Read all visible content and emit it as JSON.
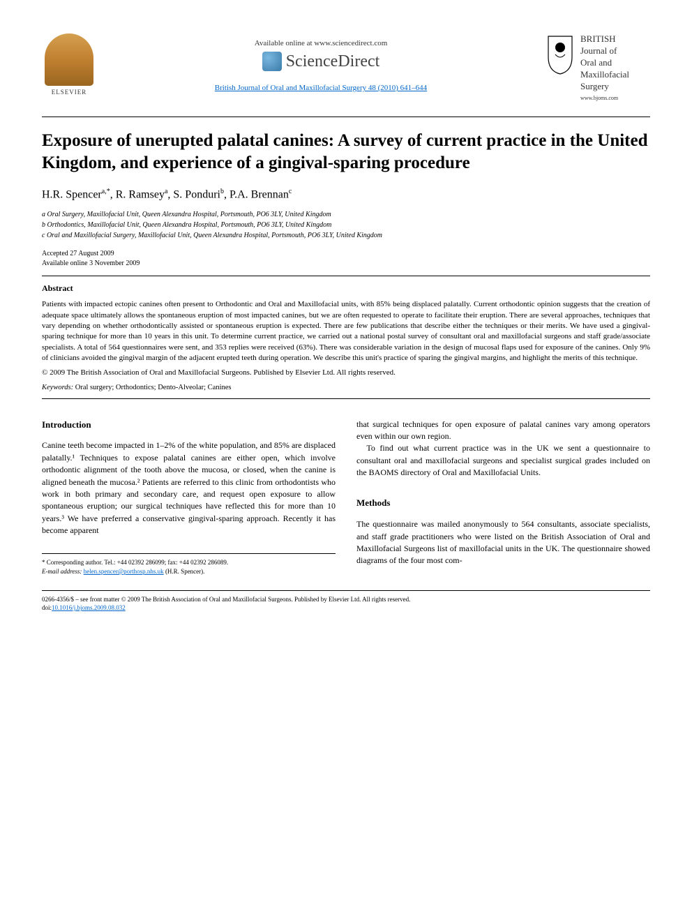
{
  "header": {
    "elsevier_label": "ELSEVIER",
    "available_text": "Available online at www.sciencedirect.com",
    "sciencedirect_label": "ScienceDirect",
    "journal_citation": "British Journal of Oral and Maxillofacial Surgery 48 (2010) 641–644",
    "journal_name_line1": "BRITISH",
    "journal_name_line2": "Journal of",
    "journal_name_line3": "Oral and",
    "journal_name_line4": "Maxillofacial",
    "journal_name_line5": "Surgery",
    "journal_url": "www.bjoms.com"
  },
  "article": {
    "title": "Exposure of unerupted palatal canines: A survey of current practice in the United Kingdom, and experience of a gingival-sparing procedure",
    "authors_html": "H.R. Spencer<sup>a,*</sup>, R. Ramsey<sup>a</sup>, S. Ponduri<sup>b</sup>, P.A. Brennan<sup>c</sup>",
    "affiliations": [
      "a Oral Surgery, Maxillofacial Unit, Queen Alexandra Hospital, Portsmouth, PO6 3LY, United Kingdom",
      "b Orthodontics, Maxillofacial Unit, Queen Alexandra Hospital, Portsmouth, PO6 3LY, United Kingdom",
      "c Oral and Maxillofacial Surgery, Maxillofacial Unit, Queen Alexandra Hospital, Portsmouth, PO6 3LY, United Kingdom"
    ],
    "accepted": "Accepted 27 August 2009",
    "online": "Available online 3 November 2009"
  },
  "abstract": {
    "heading": "Abstract",
    "body": "Patients with impacted ectopic canines often present to Orthodontic and Oral and Maxillofacial units, with 85% being displaced palatally. Current orthodontic opinion suggests that the creation of adequate space ultimately allows the spontaneous eruption of most impacted canines, but we are often requested to operate to facilitate their eruption. There are several approaches, techniques that vary depending on whether orthodontically assisted or spontaneous eruption is expected. There are few publications that describe either the techniques or their merits. We have used a gingival-sparing technique for more than 10 years in this unit. To determine current practice, we carried out a national postal survey of consultant oral and maxillofacial surgeons and staff grade/associate specialists. A total of 564 questionnaires were sent, and 353 replies were received (63%). There was considerable variation in the design of mucosal flaps used for exposure of the canines. Only 9% of clinicians avoided the gingival margin of the adjacent erupted teeth during operation. We describe this unit's practice of sparing the gingival margins, and highlight the merits of this technique.",
    "copyright": "© 2009 The British Association of Oral and Maxillofacial Surgeons. Published by Elsevier Ltd. All rights reserved.",
    "keywords_label": "Keywords:",
    "keywords_value": "Oral surgery; Orthodontics; Dento-Alveolar; Canines"
  },
  "intro": {
    "heading": "Introduction",
    "para1": "Canine teeth become impacted in 1–2% of the white population, and 85% are displaced palatally.¹ Techniques to expose palatal canines are either open, which involve orthodontic alignment of the tooth above the mucosa, or closed, when the canine is aligned beneath the mucosa.² Patients are referred to this clinic from orthodontists who work in both primary and secondary care, and request open exposure to allow spontaneous eruption; our surgical techniques have reflected this for more than 10 years.³ We have preferred a conservative gingival-sparing approach. Recently it has become apparent",
    "para2_col2": "that surgical techniques for open exposure of palatal canines vary among operators even within our own region.",
    "para3_col2": "To find out what current practice was in the UK we sent a questionnaire to consultant oral and maxillofacial surgeons and specialist surgical grades included on the BAOMS directory of Oral and Maxillofacial Units."
  },
  "methods": {
    "heading": "Methods",
    "para1": "The questionnaire was mailed anonymously to 564 consultants, associate specialists, and staff grade practitioners who were listed on the British Association of Oral and Maxillofacial Surgeons list of maxillofacial units in the UK. The questionnaire showed diagrams of the four most com-"
  },
  "footnote": {
    "corresp": "* Corresponding author. Tel.: +44 02392 286099; fax: +44 02392 286089.",
    "email_label": "E-mail address:",
    "email": "helen.spencer@porthosp.nhs.uk",
    "email_name": "(H.R. Spencer)."
  },
  "footer": {
    "issn_line": "0266-4356/$ – see front matter © 2009 The British Association of Oral and Maxillofacial Surgeons. Published by Elsevier Ltd. All rights reserved.",
    "doi_label": "doi:",
    "doi": "10.1016/j.bjoms.2009.08.032"
  }
}
